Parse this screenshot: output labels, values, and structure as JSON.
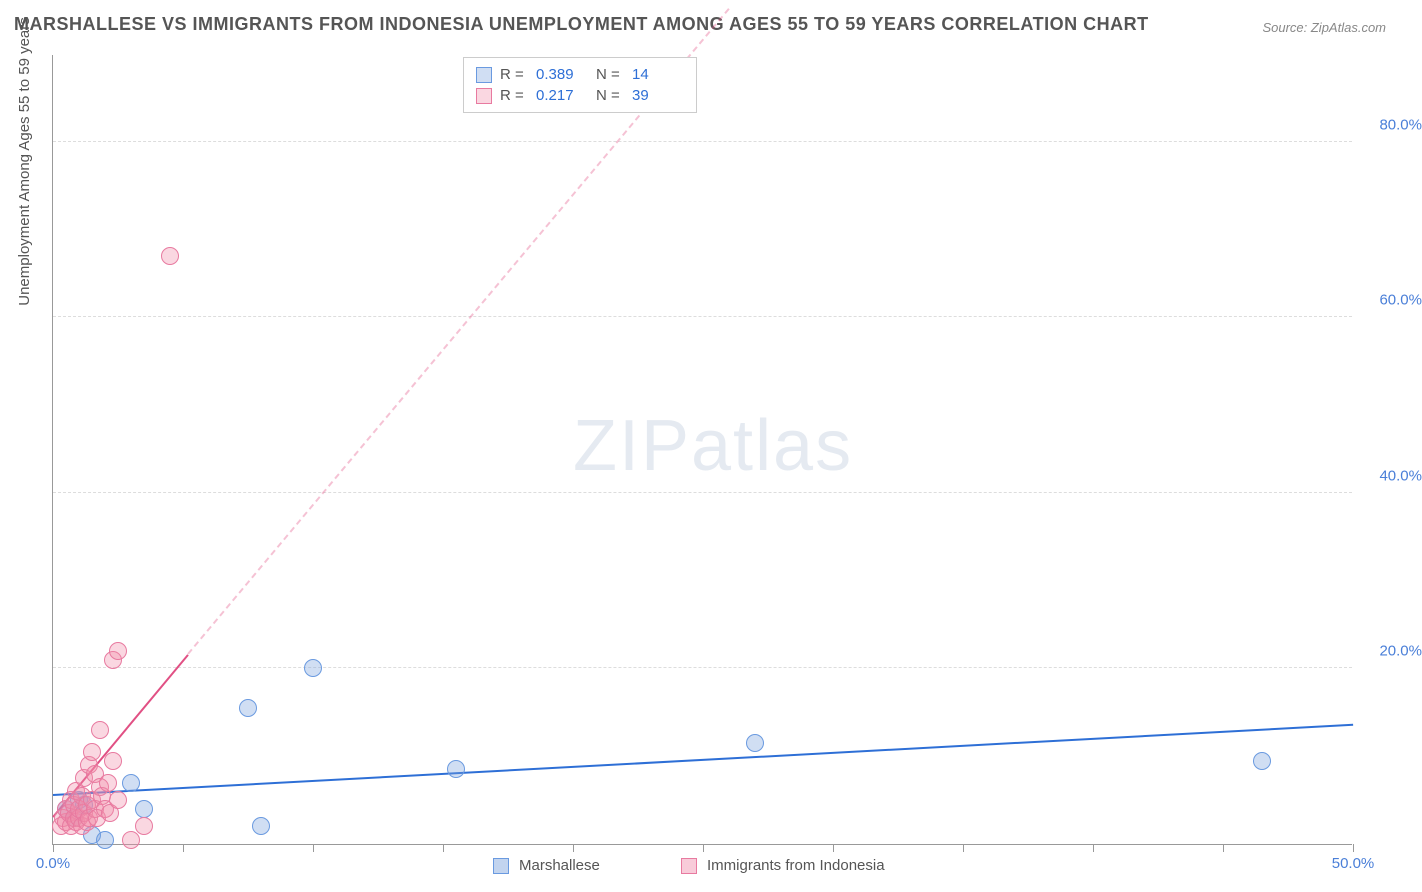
{
  "title": "MARSHALLESE VS IMMIGRANTS FROM INDONESIA UNEMPLOYMENT AMONG AGES 55 TO 59 YEARS CORRELATION CHART",
  "source": "Source: ZipAtlas.com",
  "y_axis_title": "Unemployment Among Ages 55 to 59 years",
  "watermark_a": "ZIP",
  "watermark_b": "atlas",
  "chart": {
    "type": "scatter",
    "xlim": [
      0,
      50
    ],
    "ylim": [
      0,
      90
    ],
    "background_color": "#ffffff",
    "grid_color": "#dddddd",
    "axis_color": "#999999",
    "x_ticks": [
      0,
      5,
      10,
      15,
      20,
      25,
      30,
      35,
      40,
      45,
      50
    ],
    "x_tick_labels": [
      {
        "v": 0,
        "label": "0.0%"
      },
      {
        "v": 50,
        "label": "50.0%"
      }
    ],
    "x_label_color": "#4a7fd8",
    "y_grid": [
      20,
      40,
      60,
      80
    ],
    "y_tick_labels": [
      {
        "v": 20,
        "label": "20.0%"
      },
      {
        "v": 40,
        "label": "40.0%"
      },
      {
        "v": 60,
        "label": "60.0%"
      },
      {
        "v": 80,
        "label": "80.0%"
      }
    ],
    "y_label_color": "#4a7fd8",
    "series": [
      {
        "name": "Marshallese",
        "fill": "rgba(120,160,220,0.35)",
        "stroke": "#6a9ae0",
        "marker_radius": 9,
        "trend": {
          "x1": 0,
          "y1": 5.5,
          "x2": 50,
          "y2": 13.5,
          "color": "#2e6fd6",
          "dash": false
        },
        "points": [
          {
            "x": 0.5,
            "y": 4.0
          },
          {
            "x": 0.8,
            "y": 3.0
          },
          {
            "x": 1.0,
            "y": 5.0
          },
          {
            "x": 1.2,
            "y": 4.5
          },
          {
            "x": 1.5,
            "y": 1.0
          },
          {
            "x": 2.0,
            "y": 0.5
          },
          {
            "x": 3.0,
            "y": 7.0
          },
          {
            "x": 3.5,
            "y": 4.0
          },
          {
            "x": 7.5,
            "y": 15.5
          },
          {
            "x": 8.0,
            "y": 2.0
          },
          {
            "x": 10.0,
            "y": 20.0
          },
          {
            "x": 15.5,
            "y": 8.5
          },
          {
            "x": 27.0,
            "y": 11.5
          },
          {
            "x": 46.5,
            "y": 9.5
          }
        ],
        "R": "0.389",
        "N": "14"
      },
      {
        "name": "Immigrants from Indonesia",
        "fill": "rgba(240,140,170,0.35)",
        "stroke": "#e87aa0",
        "marker_radius": 9,
        "trend": {
          "x1": 0,
          "y1": 3.0,
          "x2": 5.2,
          "y2": 21.5,
          "color": "#e15084",
          "dash": false
        },
        "trend_extend": {
          "x1": 5.2,
          "y1": 21.5,
          "x2": 26.0,
          "y2": 95.0,
          "color": "rgba(225,80,132,0.35)",
          "dash": true
        },
        "points": [
          {
            "x": 0.3,
            "y": 2.0
          },
          {
            "x": 0.4,
            "y": 3.0
          },
          {
            "x": 0.5,
            "y": 2.5
          },
          {
            "x": 0.5,
            "y": 4.0
          },
          {
            "x": 0.6,
            "y": 3.5
          },
          {
            "x": 0.7,
            "y": 2.0
          },
          {
            "x": 0.7,
            "y": 5.0
          },
          {
            "x": 0.8,
            "y": 3.0
          },
          {
            "x": 0.8,
            "y": 4.5
          },
          {
            "x": 0.9,
            "y": 2.5
          },
          {
            "x": 0.9,
            "y": 6.0
          },
          {
            "x": 1.0,
            "y": 3.0
          },
          {
            "x": 1.0,
            "y": 4.0
          },
          {
            "x": 1.1,
            "y": 2.0
          },
          {
            "x": 1.1,
            "y": 5.5
          },
          {
            "x": 1.2,
            "y": 3.5
          },
          {
            "x": 1.2,
            "y": 7.5
          },
          {
            "x": 1.3,
            "y": 2.5
          },
          {
            "x": 1.3,
            "y": 4.5
          },
          {
            "x": 1.4,
            "y": 3.0
          },
          {
            "x": 1.4,
            "y": 9.0
          },
          {
            "x": 1.5,
            "y": 5.0
          },
          {
            "x": 1.5,
            "y": 10.5
          },
          {
            "x": 1.6,
            "y": 4.0
          },
          {
            "x": 1.6,
            "y": 8.0
          },
          {
            "x": 1.7,
            "y": 3.0
          },
          {
            "x": 1.8,
            "y": 6.5
          },
          {
            "x": 1.8,
            "y": 13.0
          },
          {
            "x": 1.9,
            "y": 5.5
          },
          {
            "x": 2.0,
            "y": 4.0
          },
          {
            "x": 2.1,
            "y": 7.0
          },
          {
            "x": 2.2,
            "y": 3.5
          },
          {
            "x": 2.3,
            "y": 9.5
          },
          {
            "x": 2.3,
            "y": 21.0
          },
          {
            "x": 2.5,
            "y": 22.0
          },
          {
            "x": 2.5,
            "y": 5.0
          },
          {
            "x": 3.0,
            "y": 0.5
          },
          {
            "x": 3.5,
            "y": 2.0
          },
          {
            "x": 4.5,
            "y": 67.0
          }
        ],
        "R": "0.217",
        "N": "39"
      }
    ],
    "legend": [
      {
        "label": "Marshallese",
        "fill": "rgba(120,160,220,0.45)",
        "stroke": "#6a9ae0"
      },
      {
        "label": "Immigrants from Indonesia",
        "fill": "rgba(240,140,170,0.45)",
        "stroke": "#e87aa0"
      }
    ]
  }
}
